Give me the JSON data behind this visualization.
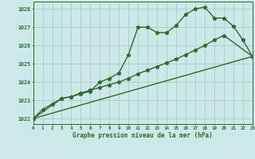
{
  "x_full": [
    0,
    1,
    2,
    3,
    4,
    5,
    6,
    7,
    8,
    9,
    10,
    11,
    12,
    13,
    14,
    15,
    16,
    17,
    18,
    19,
    20,
    21,
    22,
    23
  ],
  "series1": [
    1022.0,
    1022.5,
    1022.8,
    1023.1,
    1023.2,
    1023.35,
    1023.5,
    1024.0,
    1024.2,
    1024.5,
    1025.5,
    1027.0,
    1027.0,
    1026.7,
    1026.7,
    1027.1,
    1027.7,
    1028.0,
    1028.1,
    1027.5,
    1027.5,
    1027.05,
    1026.3,
    1025.4
  ],
  "series2_x": [
    0,
    3,
    4,
    5,
    6,
    7,
    8,
    9,
    10,
    11,
    12,
    13,
    14,
    15,
    16,
    17,
    18,
    19,
    20,
    23
  ],
  "series2_y": [
    1022.0,
    1023.1,
    1023.2,
    1023.4,
    1023.55,
    1023.7,
    1023.85,
    1024.0,
    1024.2,
    1024.45,
    1024.65,
    1024.85,
    1025.05,
    1025.25,
    1025.5,
    1025.75,
    1026.0,
    1026.3,
    1026.55,
    1025.4
  ],
  "series3_x": [
    0,
    23
  ],
  "series3_y": [
    1022.0,
    1025.4
  ],
  "line_color": "#2d6a2d",
  "bg_color": "#cce8e8",
  "grid_color": "#aacccc",
  "ylabel_vals": [
    1022,
    1023,
    1024,
    1025,
    1026,
    1027,
    1028
  ],
  "xlabel": "Graphe pression niveau de la mer (hPa)",
  "xlim": [
    0,
    23
  ],
  "ylim": [
    1021.7,
    1028.4
  ],
  "marker": "*",
  "marker_size": 3.5,
  "line_width": 1.0
}
